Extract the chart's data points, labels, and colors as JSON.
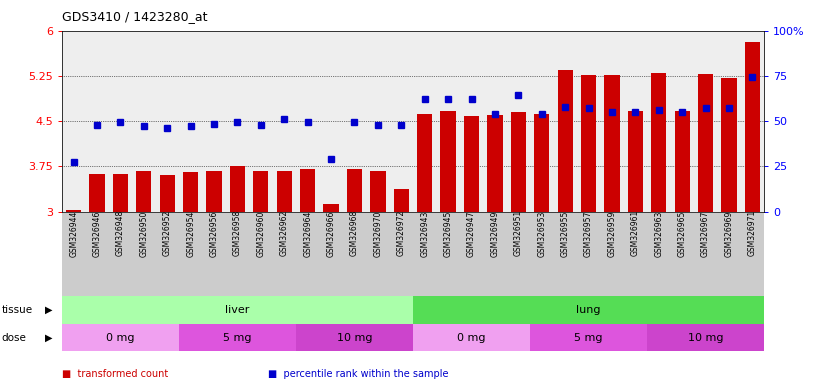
{
  "title": "GDS3410 / 1423280_at",
  "samples": [
    "GSM326944",
    "GSM326946",
    "GSM326948",
    "GSM326950",
    "GSM326952",
    "GSM326954",
    "GSM326956",
    "GSM326958",
    "GSM326960",
    "GSM326962",
    "GSM326964",
    "GSM326966",
    "GSM326968",
    "GSM326970",
    "GSM326972",
    "GSM326943",
    "GSM326945",
    "GSM326947",
    "GSM326949",
    "GSM326951",
    "GSM326953",
    "GSM326955",
    "GSM326957",
    "GSM326959",
    "GSM326961",
    "GSM326963",
    "GSM326965",
    "GSM326967",
    "GSM326969",
    "GSM326971"
  ],
  "bar_values": [
    3.03,
    3.62,
    3.62,
    3.67,
    3.61,
    3.65,
    3.68,
    3.75,
    3.67,
    3.68,
    3.71,
    3.12,
    3.7,
    3.68,
    3.37,
    4.62,
    4.67,
    4.58,
    4.6,
    4.65,
    4.62,
    5.35,
    5.27,
    5.26,
    4.67,
    5.3,
    4.67,
    5.29,
    5.22,
    5.82
  ],
  "dot_values": [
    3.82,
    4.43,
    4.48,
    4.42,
    4.38,
    4.42,
    4.45,
    4.48,
    4.43,
    4.53,
    4.48,
    3.87,
    4.48,
    4.43,
    4.43,
    4.87,
    4.87,
    4.87,
    4.62,
    4.93,
    4.62,
    4.73,
    4.72,
    4.65,
    4.65,
    4.68,
    4.65,
    4.72,
    4.72,
    5.23
  ],
  "bar_color": "#cc0000",
  "dot_color": "#0000cc",
  "ylim_left": [
    3.0,
    6.0
  ],
  "ylim_right": [
    0,
    100
  ],
  "yticks_left": [
    3.0,
    3.75,
    4.5,
    5.25,
    6.0
  ],
  "yticks_right": [
    0,
    25,
    50,
    75,
    100
  ],
  "ytick_labels_left": [
    "3",
    "3.75",
    "4.5",
    "5.25",
    "6"
  ],
  "ytick_labels_right": [
    "0",
    "25",
    "50",
    "75",
    "100%"
  ],
  "hlines": [
    3.75,
    4.5,
    5.25
  ],
  "tissue_groups": [
    {
      "label": "liver",
      "start": 0,
      "end": 15,
      "color": "#aaffaa"
    },
    {
      "label": "lung",
      "start": 15,
      "end": 30,
      "color": "#55dd55"
    }
  ],
  "dose_groups": [
    {
      "label": "0 mg",
      "start": 0,
      "end": 5,
      "color": "#f0a0f0"
    },
    {
      "label": "5 mg",
      "start": 5,
      "end": 10,
      "color": "#dd55dd"
    },
    {
      "label": "10 mg",
      "start": 10,
      "end": 15,
      "color": "#cc44cc"
    },
    {
      "label": "0 mg",
      "start": 15,
      "end": 20,
      "color": "#f0a0f0"
    },
    {
      "label": "5 mg",
      "start": 20,
      "end": 25,
      "color": "#dd55dd"
    },
    {
      "label": "10 mg",
      "start": 25,
      "end": 30,
      "color": "#cc44cc"
    }
  ],
  "legend_items": [
    {
      "label": "transformed count",
      "color": "#cc0000"
    },
    {
      "label": "percentile rank within the sample",
      "color": "#0000cc"
    }
  ],
  "plot_bg_color": "#eeeeee",
  "xtick_bg_color": "#cccccc"
}
